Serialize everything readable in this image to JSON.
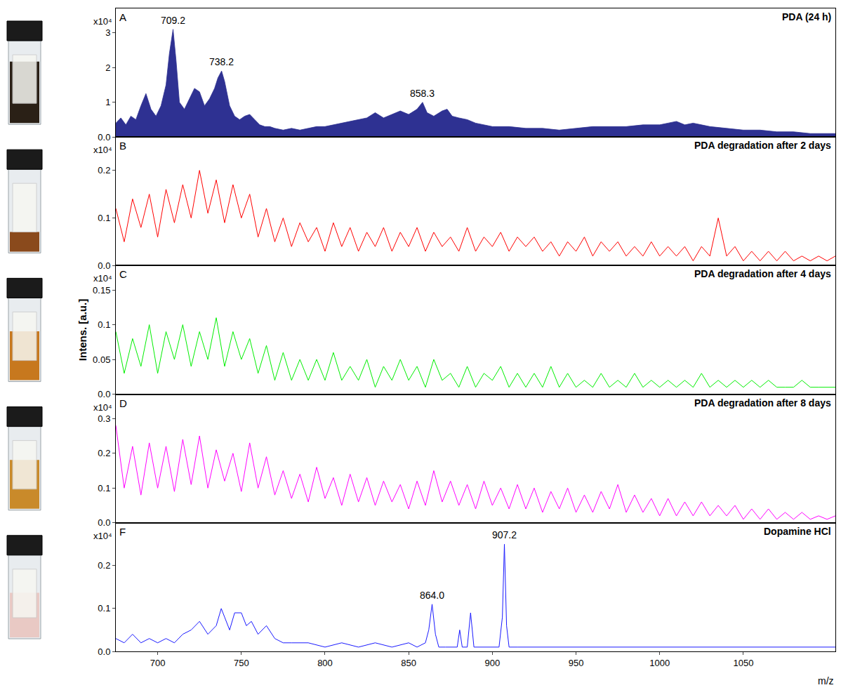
{
  "chart_data": [
    {
      "type": "area",
      "title": "PDA (24 h)",
      "panel_label": "A",
      "y_multiplier": "x10⁴",
      "color": "#2e3192",
      "tick_labels": "y",
      "grid": false,
      "x": [
        675,
        678,
        681,
        684,
        687,
        690,
        693,
        696,
        699,
        702,
        705,
        707,
        709.2,
        711,
        713,
        716,
        719,
        722,
        725,
        728,
        731,
        734,
        736,
        738.2,
        740,
        743,
        746,
        749,
        752,
        755,
        758,
        761,
        764,
        767,
        770,
        775,
        780,
        785,
        790,
        795,
        800,
        805,
        810,
        815,
        820,
        825,
        830,
        835,
        840,
        845,
        850,
        855,
        858.3,
        861,
        865,
        870,
        873,
        876,
        880,
        885,
        890,
        895,
        900,
        910,
        920,
        930,
        940,
        950,
        960,
        970,
        980,
        990,
        1000,
        1005,
        1010,
        1015,
        1020,
        1025,
        1030,
        1040,
        1050,
        1060,
        1070,
        1080,
        1090,
        1100,
        1105
      ],
      "values": [
        0.4,
        0.55,
        0.35,
        0.6,
        0.5,
        0.9,
        1.25,
        0.8,
        0.6,
        0.9,
        1.5,
        2.4,
        3.1,
        2.2,
        1.0,
        0.8,
        1.1,
        1.4,
        1.3,
        0.9,
        1.1,
        1.4,
        1.7,
        1.9,
        1.6,
        0.9,
        0.6,
        0.5,
        0.6,
        0.65,
        0.5,
        0.35,
        0.3,
        0.3,
        0.25,
        0.2,
        0.25,
        0.2,
        0.25,
        0.3,
        0.3,
        0.35,
        0.4,
        0.45,
        0.5,
        0.55,
        0.7,
        0.55,
        0.65,
        0.75,
        0.65,
        0.8,
        1.0,
        0.7,
        0.6,
        0.75,
        0.8,
        0.6,
        0.55,
        0.5,
        0.4,
        0.35,
        0.3,
        0.3,
        0.25,
        0.25,
        0.2,
        0.25,
        0.3,
        0.3,
        0.3,
        0.35,
        0.35,
        0.4,
        0.45,
        0.35,
        0.4,
        0.35,
        0.3,
        0.25,
        0.2,
        0.2,
        0.15,
        0.15,
        0.1,
        0.1,
        0.1
      ],
      "xlim": [
        675,
        1105
      ],
      "xticks": [
        700,
        750,
        800,
        850,
        900,
        950,
        1000,
        1050
      ],
      "ylim": [
        0,
        3.7
      ],
      "yticks": [
        {
          "value": 0,
          "label": "0.0"
        },
        1,
        2,
        3
      ],
      "annotations": [
        {
          "x": 709.2,
          "y": 3.1,
          "text": "709.2"
        },
        {
          "x": 738.2,
          "y": 1.9,
          "text": "738.2"
        },
        {
          "x": 858.3,
          "y": 1.0,
          "text": "858.3"
        }
      ]
    },
    {
      "type": "line",
      "title": "PDA degradation after 2 days",
      "panel_label": "B",
      "y_multiplier": "x10⁴",
      "color": "#ff0000",
      "tick_labels": "y",
      "grid": false,
      "x": [
        675,
        680,
        685,
        690,
        695,
        700,
        705,
        710,
        715,
        720,
        725,
        730,
        735,
        740,
        745,
        750,
        755,
        760,
        765,
        770,
        775,
        780,
        785,
        790,
        795,
        800,
        805,
        810,
        815,
        820,
        825,
        830,
        835,
        840,
        845,
        850,
        855,
        860,
        865,
        870,
        875,
        880,
        885,
        890,
        895,
        900,
        905,
        910,
        915,
        920,
        925,
        930,
        935,
        940,
        945,
        950,
        955,
        960,
        965,
        970,
        975,
        980,
        985,
        990,
        995,
        1000,
        1005,
        1010,
        1015,
        1020,
        1025,
        1030,
        1035,
        1040,
        1045,
        1050,
        1055,
        1060,
        1065,
        1070,
        1075,
        1080,
        1085,
        1090,
        1095,
        1100,
        1105
      ],
      "values": [
        0.12,
        0.05,
        0.14,
        0.08,
        0.15,
        0.06,
        0.16,
        0.09,
        0.17,
        0.1,
        0.2,
        0.11,
        0.18,
        0.09,
        0.17,
        0.1,
        0.15,
        0.06,
        0.12,
        0.05,
        0.1,
        0.04,
        0.09,
        0.05,
        0.08,
        0.03,
        0.09,
        0.04,
        0.08,
        0.03,
        0.07,
        0.04,
        0.08,
        0.03,
        0.07,
        0.04,
        0.08,
        0.03,
        0.07,
        0.04,
        0.06,
        0.03,
        0.08,
        0.03,
        0.06,
        0.04,
        0.07,
        0.03,
        0.06,
        0.04,
        0.06,
        0.03,
        0.05,
        0.02,
        0.05,
        0.03,
        0.06,
        0.02,
        0.05,
        0.03,
        0.05,
        0.02,
        0.04,
        0.02,
        0.05,
        0.02,
        0.04,
        0.02,
        0.04,
        0.01,
        0.04,
        0.02,
        0.1,
        0.02,
        0.04,
        0.01,
        0.03,
        0.01,
        0.03,
        0.01,
        0.03,
        0.01,
        0.02,
        0.01,
        0.02,
        0.01,
        0.02
      ],
      "xlim": [
        675,
        1105
      ],
      "xticks": [
        700,
        750,
        800,
        850,
        900,
        950,
        1000,
        1050
      ],
      "ylim": [
        0,
        0.27
      ],
      "yticks": [
        {
          "value": 0,
          "label": "0.0"
        },
        0.1,
        0.2
      ]
    },
    {
      "type": "line",
      "title": "PDA degradation after 4 days",
      "panel_label": "C",
      "y_multiplier": "x10⁴",
      "color": "#00ee00",
      "tick_labels": "y",
      "grid": false,
      "ylabel": "Intens. [a.u.]",
      "x": [
        675,
        680,
        685,
        690,
        695,
        700,
        705,
        710,
        715,
        720,
        725,
        730,
        735,
        740,
        745,
        750,
        755,
        760,
        765,
        770,
        775,
        780,
        785,
        790,
        795,
        800,
        805,
        810,
        815,
        820,
        825,
        830,
        835,
        840,
        845,
        850,
        855,
        860,
        865,
        870,
        875,
        880,
        885,
        890,
        895,
        900,
        905,
        910,
        915,
        920,
        925,
        930,
        935,
        940,
        945,
        950,
        955,
        960,
        965,
        970,
        975,
        980,
        985,
        990,
        995,
        1000,
        1005,
        1010,
        1015,
        1020,
        1025,
        1030,
        1035,
        1040,
        1045,
        1050,
        1055,
        1060,
        1065,
        1070,
        1075,
        1080,
        1085,
        1090,
        1095,
        1100,
        1105
      ],
      "values": [
        0.09,
        0.03,
        0.08,
        0.04,
        0.1,
        0.03,
        0.09,
        0.05,
        0.1,
        0.04,
        0.09,
        0.05,
        0.11,
        0.04,
        0.09,
        0.05,
        0.08,
        0.03,
        0.07,
        0.02,
        0.06,
        0.02,
        0.05,
        0.02,
        0.05,
        0.02,
        0.06,
        0.02,
        0.04,
        0.02,
        0.05,
        0.01,
        0.04,
        0.02,
        0.05,
        0.02,
        0.04,
        0.01,
        0.05,
        0.02,
        0.03,
        0.01,
        0.04,
        0.01,
        0.03,
        0.02,
        0.04,
        0.01,
        0.03,
        0.01,
        0.03,
        0.01,
        0.04,
        0.01,
        0.03,
        0.01,
        0.02,
        0.01,
        0.03,
        0.01,
        0.02,
        0.01,
        0.03,
        0.01,
        0.02,
        0.01,
        0.02,
        0.01,
        0.02,
        0.01,
        0.03,
        0.01,
        0.02,
        0.01,
        0.02,
        0.01,
        0.02,
        0.01,
        0.02,
        0.01,
        0.01,
        0.01,
        0.02,
        0.01,
        0.01,
        0.01,
        0.01
      ],
      "xlim": [
        675,
        1105
      ],
      "xticks": [
        700,
        750,
        800,
        850,
        900,
        950,
        1000,
        1050
      ],
      "ylim": [
        0,
        0.185
      ],
      "yticks": [
        {
          "value": 0,
          "label": "0.0"
        },
        0.05,
        0.1,
        0.15
      ]
    },
    {
      "type": "line",
      "title": "PDA degradation after 8 days",
      "panel_label": "D",
      "y_multiplier": "x10⁴",
      "color": "#ff00ff",
      "tick_labels": "y",
      "grid": false,
      "x": [
        675,
        680,
        685,
        690,
        695,
        700,
        705,
        710,
        715,
        720,
        725,
        730,
        735,
        740,
        745,
        750,
        755,
        760,
        765,
        770,
        775,
        780,
        785,
        790,
        795,
        800,
        805,
        810,
        815,
        820,
        825,
        830,
        835,
        840,
        845,
        850,
        855,
        860,
        865,
        870,
        875,
        880,
        885,
        890,
        895,
        900,
        905,
        910,
        915,
        920,
        925,
        930,
        935,
        940,
        945,
        950,
        955,
        960,
        965,
        970,
        975,
        980,
        985,
        990,
        995,
        1000,
        1005,
        1010,
        1015,
        1020,
        1025,
        1030,
        1035,
        1040,
        1045,
        1050,
        1055,
        1060,
        1065,
        1070,
        1075,
        1080,
        1085,
        1090,
        1095,
        1100,
        1105
      ],
      "values": [
        0.28,
        0.1,
        0.22,
        0.08,
        0.23,
        0.1,
        0.22,
        0.09,
        0.24,
        0.11,
        0.25,
        0.1,
        0.21,
        0.12,
        0.2,
        0.09,
        0.23,
        0.1,
        0.19,
        0.08,
        0.15,
        0.07,
        0.14,
        0.06,
        0.16,
        0.07,
        0.13,
        0.05,
        0.14,
        0.06,
        0.13,
        0.05,
        0.12,
        0.06,
        0.11,
        0.04,
        0.12,
        0.05,
        0.15,
        0.06,
        0.12,
        0.05,
        0.11,
        0.04,
        0.12,
        0.05,
        0.1,
        0.04,
        0.11,
        0.04,
        0.1,
        0.03,
        0.09,
        0.04,
        0.1,
        0.03,
        0.08,
        0.03,
        0.09,
        0.04,
        0.11,
        0.03,
        0.08,
        0.03,
        0.07,
        0.02,
        0.07,
        0.02,
        0.06,
        0.02,
        0.06,
        0.02,
        0.05,
        0.02,
        0.05,
        0.01,
        0.04,
        0.01,
        0.04,
        0.01,
        0.03,
        0.01,
        0.03,
        0.01,
        0.02,
        0.01,
        0.02
      ],
      "xlim": [
        675,
        1105
      ],
      "xticks": [
        700,
        750,
        800,
        850,
        900,
        950,
        1000,
        1050
      ],
      "ylim": [
        0,
        0.37
      ],
      "yticks": [
        {
          "value": 0,
          "label": "0.0"
        },
        0.1,
        0.2,
        0.3
      ]
    },
    {
      "type": "line",
      "title": "Dopamine HCl",
      "panel_label": "F",
      "y_multiplier": "x10⁴",
      "color": "#1a1aff",
      "grid": false,
      "xlabel": "m/z",
      "x": [
        675,
        680,
        685,
        690,
        695,
        700,
        705,
        710,
        715,
        720,
        725,
        730,
        735,
        738,
        740,
        743,
        746,
        750,
        753,
        756,
        760,
        765,
        770,
        775,
        780,
        790,
        800,
        810,
        820,
        830,
        840,
        850,
        855,
        860,
        862,
        864,
        866,
        868,
        872,
        876,
        879,
        880.5,
        882,
        885,
        887,
        889,
        893,
        897,
        901,
        904,
        906,
        907.2,
        908.5,
        910,
        915,
        920,
        930,
        940,
        950,
        960,
        980,
        1000,
        1020,
        1040,
        1060,
        1080,
        1105
      ],
      "values": [
        0.03,
        0.02,
        0.04,
        0.02,
        0.03,
        0.02,
        0.03,
        0.02,
        0.04,
        0.05,
        0.07,
        0.04,
        0.06,
        0.1,
        0.08,
        0.05,
        0.09,
        0.09,
        0.06,
        0.07,
        0.04,
        0.06,
        0.03,
        0.02,
        0.02,
        0.02,
        0.01,
        0.02,
        0.01,
        0.02,
        0.01,
        0.02,
        0.01,
        0.02,
        0.05,
        0.11,
        0.04,
        0.01,
        0.01,
        0.01,
        0.01,
        0.05,
        0.01,
        0.01,
        0.09,
        0.01,
        0.01,
        0.01,
        0.01,
        0.01,
        0.08,
        0.25,
        0.06,
        0.01,
        0.01,
        0.01,
        0.01,
        0.01,
        0.01,
        0.01,
        0.01,
        0.01,
        0.01,
        0.01,
        0.01,
        0.01,
        0.01
      ],
      "xlim": [
        675,
        1105
      ],
      "xticks": [
        700,
        750,
        800,
        850,
        900,
        950,
        1000,
        1050
      ],
      "ylim": [
        0,
        0.3
      ],
      "yticks": [
        {
          "value": 0,
          "label": "0.0"
        },
        0.1,
        0.2
      ],
      "annotations": [
        {
          "x": 864.0,
          "y": 0.11,
          "text": "864.0"
        },
        {
          "x": 907.2,
          "y": 0.25,
          "text": "907.2"
        }
      ]
    }
  ]
}
